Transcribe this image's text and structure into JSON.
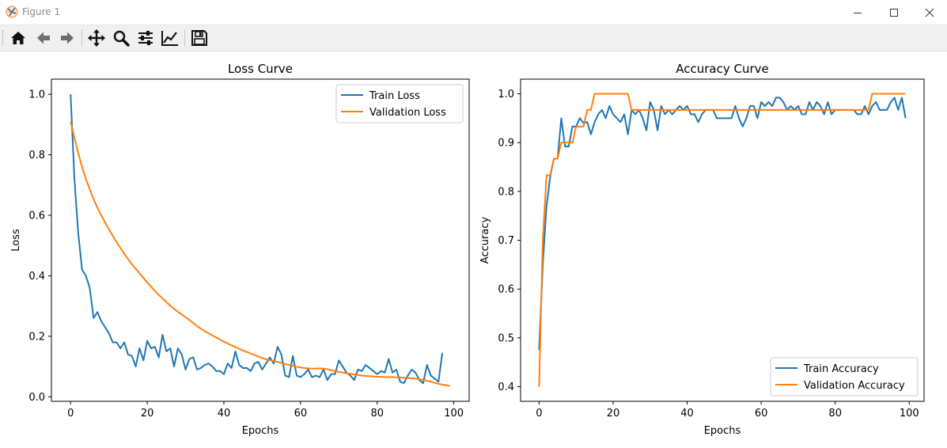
{
  "window": {
    "title": "Figure 1"
  },
  "toolbar": {
    "buttons": [
      {
        "name": "home-icon"
      },
      {
        "name": "back-arrow-icon"
      },
      {
        "name": "forward-arrow-icon"
      },
      {
        "name": "pan-icon"
      },
      {
        "name": "zoom-icon"
      },
      {
        "name": "subplots-config-icon"
      },
      {
        "name": "edit-axis-icon"
      },
      {
        "name": "save-icon"
      }
    ]
  },
  "colors": {
    "train": "#1f77b4",
    "validation": "#ff7f0e"
  },
  "chart_data": [
    {
      "type": "line",
      "title": "Loss Curve",
      "xlabel": "Epochs",
      "ylabel": "Loss",
      "xlim": [
        -5,
        104
      ],
      "ylim": [
        -0.015,
        1.05
      ],
      "xticks": [
        0,
        20,
        40,
        60,
        80,
        100
      ],
      "xtick_labels": [
        "0",
        "20",
        "40",
        "60",
        "80",
        "100"
      ],
      "yticks": [
        0.0,
        0.2,
        0.4,
        0.6,
        0.8,
        1.0
      ],
      "ytick_labels": [
        "0.0",
        "0.2",
        "0.4",
        "0.6",
        "0.8",
        "1.0"
      ],
      "grid": false,
      "legend_position": "upper right",
      "series": [
        {
          "name": "Train Loss",
          "values": [
            1.0,
            0.72,
            0.54,
            0.42,
            0.4,
            0.36,
            0.26,
            0.28,
            0.25,
            0.23,
            0.21,
            0.18,
            0.18,
            0.16,
            0.18,
            0.14,
            0.135,
            0.1,
            0.16,
            0.12,
            0.185,
            0.16,
            0.165,
            0.13,
            0.205,
            0.15,
            0.16,
            0.1,
            0.16,
            0.14,
            0.09,
            0.125,
            0.13,
            0.09,
            0.095,
            0.105,
            0.11,
            0.1,
            0.085,
            0.085,
            0.075,
            0.11,
            0.095,
            0.15,
            0.105,
            0.095,
            0.095,
            0.085,
            0.11,
            0.115,
            0.09,
            0.11,
            0.13,
            0.11,
            0.165,
            0.14,
            0.07,
            0.065,
            0.135,
            0.07,
            0.065,
            0.075,
            0.09,
            0.065,
            0.07,
            0.065,
            0.09,
            0.055,
            0.075,
            0.075,
            0.12,
            0.1,
            0.08,
            0.07,
            0.055,
            0.09,
            0.085,
            0.105,
            0.095,
            0.085,
            0.075,
            0.085,
            0.08,
            0.125,
            0.08,
            0.09,
            0.05,
            0.045,
            0.07,
            0.09,
            0.08,
            0.055,
            0.045,
            0.105,
            0.07,
            0.06,
            0.05,
            0.145
          ]
        },
        {
          "name": "Validation Loss",
          "values": [
            0.91,
            0.856,
            0.806,
            0.76,
            0.72,
            0.686,
            0.654,
            0.625,
            0.6,
            0.576,
            0.554,
            0.532,
            0.512,
            0.492,
            0.473,
            0.455,
            0.438,
            0.423,
            0.408,
            0.393,
            0.378,
            0.364,
            0.35,
            0.337,
            0.325,
            0.313,
            0.301,
            0.291,
            0.281,
            0.272,
            0.263,
            0.254,
            0.244,
            0.234,
            0.225,
            0.217,
            0.21,
            0.203,
            0.196,
            0.189,
            0.182,
            0.176,
            0.17,
            0.164,
            0.158,
            0.153,
            0.148,
            0.143,
            0.138,
            0.133,
            0.128,
            0.124,
            0.121,
            0.118,
            0.115,
            0.112,
            0.108,
            0.105,
            0.102,
            0.099,
            0.097,
            0.095,
            0.094,
            0.093,
            0.093,
            0.094,
            0.093,
            0.091,
            0.088,
            0.085,
            0.082,
            0.08,
            0.078,
            0.076,
            0.074,
            0.072,
            0.07,
            0.069,
            0.068,
            0.067,
            0.066,
            0.066,
            0.065,
            0.065,
            0.065,
            0.064,
            0.064,
            0.063,
            0.062,
            0.061,
            0.06,
            0.058,
            0.056,
            0.053,
            0.05,
            0.046,
            0.043,
            0.04,
            0.038,
            0.036
          ]
        }
      ]
    },
    {
      "type": "line",
      "title": "Accuracy Curve",
      "xlabel": "Epochs",
      "ylabel": "Accuracy",
      "xlim": [
        -5,
        104
      ],
      "ylim": [
        0.37,
        1.03
      ],
      "xticks": [
        0,
        20,
        40,
        60,
        80,
        100
      ],
      "xtick_labels": [
        "0",
        "20",
        "40",
        "60",
        "80",
        "100"
      ],
      "yticks": [
        0.4,
        0.5,
        0.6,
        0.7,
        0.8,
        0.9,
        1.0
      ],
      "ytick_labels": [
        "0.4",
        "0.5",
        "0.6",
        "0.7",
        "0.8",
        "0.9",
        "1.0"
      ],
      "grid": false,
      "legend_position": "lower right",
      "series": [
        {
          "name": "Train Accuracy",
          "values": [
            0.475,
            0.65,
            0.77,
            0.83,
            0.867,
            0.867,
            0.95,
            0.892,
            0.892,
            0.933,
            0.933,
            0.95,
            0.94,
            0.942,
            0.917,
            0.942,
            0.958,
            0.967,
            0.95,
            0.975,
            0.958,
            0.95,
            0.942,
            0.958,
            0.917,
            0.967,
            0.958,
            0.967,
            0.95,
            0.925,
            0.983,
            0.967,
            0.925,
            0.975,
            0.958,
            0.967,
            0.958,
            0.967,
            0.975,
            0.967,
            0.975,
            0.958,
            0.958,
            0.942,
            0.958,
            0.967,
            0.967,
            0.967,
            0.95,
            0.95,
            0.95,
            0.95,
            0.95,
            0.975,
            0.95,
            0.933,
            0.95,
            0.975,
            0.975,
            0.95,
            0.983,
            0.975,
            0.983,
            0.975,
            0.992,
            0.992,
            0.983,
            0.967,
            0.975,
            0.967,
            0.975,
            0.958,
            0.958,
            0.983,
            0.967,
            0.983,
            0.975,
            0.958,
            0.983,
            0.958,
            0.967,
            0.967,
            0.967,
            0.967,
            0.967,
            0.967,
            0.958,
            0.958,
            0.975,
            0.958,
            0.975,
            0.983,
            0.967,
            0.967,
            0.967,
            0.983,
            0.992,
            0.967,
            0.992,
            0.95
          ]
        },
        {
          "name": "Validation Accuracy",
          "values": [
            0.4,
            0.7,
            0.833,
            0.833,
            0.867,
            0.867,
            0.9,
            0.9,
            0.9,
            0.9,
            0.933,
            0.933,
            0.933,
            0.967,
            0.967,
            1.0,
            1.0,
            1.0,
            1.0,
            1.0,
            1.0,
            1.0,
            1.0,
            1.0,
            1.0,
            0.967,
            0.967,
            0.967,
            0.967,
            0.967,
            0.967,
            0.967,
            0.967,
            0.967,
            0.967,
            0.967,
            0.967,
            0.967,
            0.967,
            0.967,
            0.967,
            0.967,
            0.967,
            0.967,
            0.967,
            0.967,
            0.967,
            0.967,
            0.967,
            0.967,
            0.967,
            0.967,
            0.967,
            0.967,
            0.967,
            0.967,
            0.967,
            0.967,
            0.967,
            0.967,
            0.967,
            0.967,
            0.967,
            0.967,
            0.967,
            0.967,
            0.967,
            0.967,
            0.967,
            0.967,
            0.967,
            0.967,
            0.967,
            0.967,
            0.967,
            0.967,
            0.967,
            0.967,
            0.967,
            0.967,
            0.967,
            0.967,
            0.967,
            0.967,
            0.967,
            0.967,
            0.967,
            0.967,
            0.967,
            0.967,
            1.0,
            1.0,
            1.0,
            1.0,
            1.0,
            1.0,
            1.0,
            1.0,
            1.0,
            1.0
          ]
        }
      ]
    }
  ]
}
